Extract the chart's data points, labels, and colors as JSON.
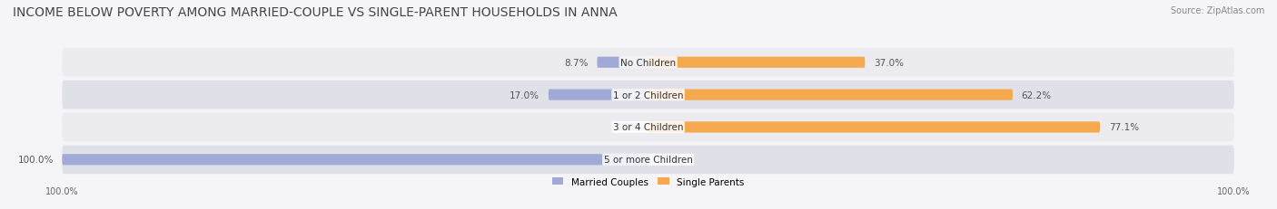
{
  "title": "INCOME BELOW POVERTY AMONG MARRIED-COUPLE VS SINGLE-PARENT HOUSEHOLDS IN ANNA",
  "source": "Source: ZipAtlas.com",
  "categories": [
    "No Children",
    "1 or 2 Children",
    "3 or 4 Children",
    "5 or more Children"
  ],
  "married_values": [
    8.7,
    17.0,
    0.0,
    100.0
  ],
  "single_values": [
    37.0,
    62.2,
    77.1,
    0.0
  ],
  "married_color": "#a0aad4",
  "single_color": "#f5a94e",
  "bar_bg_color": "#e8e8ee",
  "row_bg_colors": [
    "#ebebf0",
    "#e0e0e8"
  ],
  "max_value": 100.0,
  "title_fontsize": 10,
  "label_fontsize": 7.5,
  "tick_fontsize": 7,
  "legend_fontsize": 7.5,
  "bar_height": 0.32,
  "xlim": [
    -100,
    100
  ],
  "x_ticks": [
    -100,
    100
  ],
  "x_tick_labels": [
    "100.0%",
    "100.0%"
  ]
}
